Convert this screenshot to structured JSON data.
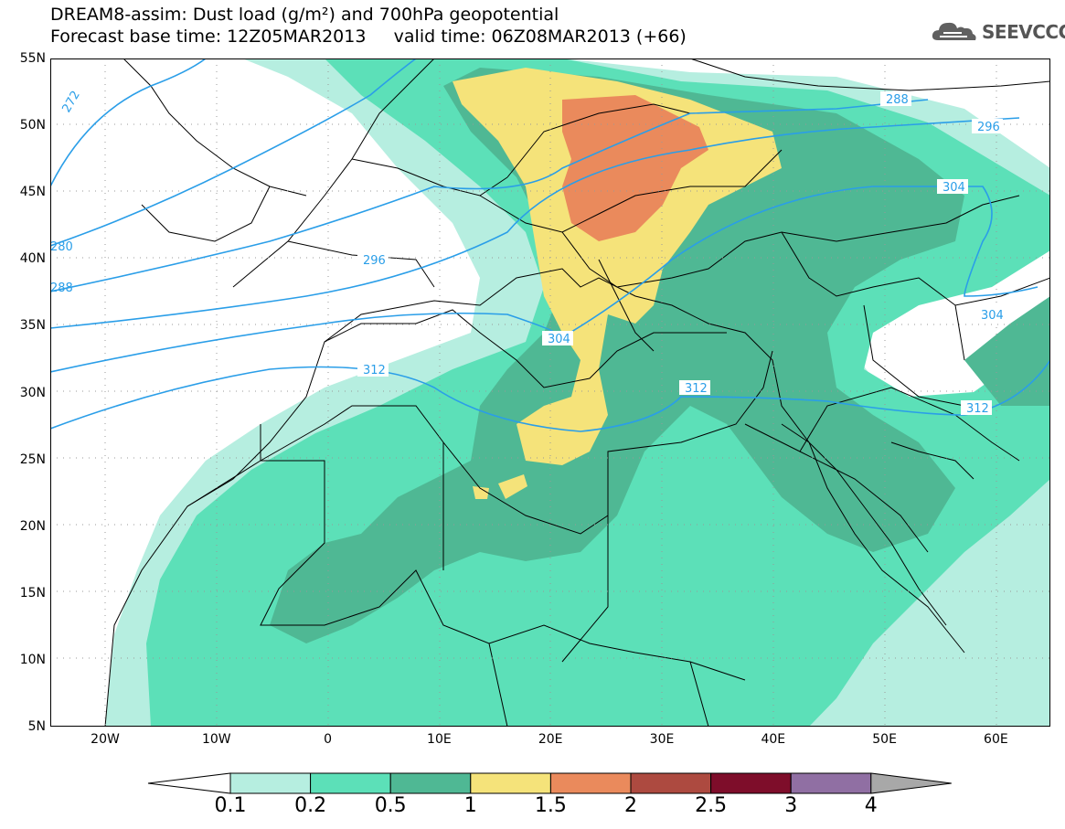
{
  "header": {
    "title_line1": "DREAM8-assim: Dust load (g/m²) and 700hPa geopotential",
    "title_line2": "Forecast base time: 12Z05MAR2013     valid time: 06Z08MAR2013 (+66)",
    "logo_text": "SEEVCCC"
  },
  "axes": {
    "lat_labels": [
      "55N",
      "50N",
      "45N",
      "40N",
      "35N",
      "30N",
      "25N",
      "20N",
      "15N",
      "10N",
      "5N"
    ],
    "lon_labels": [
      "20W",
      "10W",
      "0",
      "10E",
      "20E",
      "30E",
      "40E",
      "50E",
      "60E"
    ]
  },
  "contour_labels": [
    "272",
    "280",
    "288",
    "296",
    "304",
    "312"
  ],
  "colorbar": {
    "labels": [
      "0.1",
      "0.2",
      "0.5",
      "1",
      "1.5",
      "2",
      "2.5",
      "3",
      "4"
    ],
    "colors": [
      "#b6eee0",
      "#5ce0b8",
      "#4fb894",
      "#f5e37a",
      "#ea8a5c",
      "#ad4a40",
      "#7e0d2a",
      "#906fa3"
    ],
    "under_color": "#ffffff",
    "over_color": "#a8a8a8"
  },
  "colors": {
    "contour": "#2a9ee8",
    "border": "#000000"
  }
}
